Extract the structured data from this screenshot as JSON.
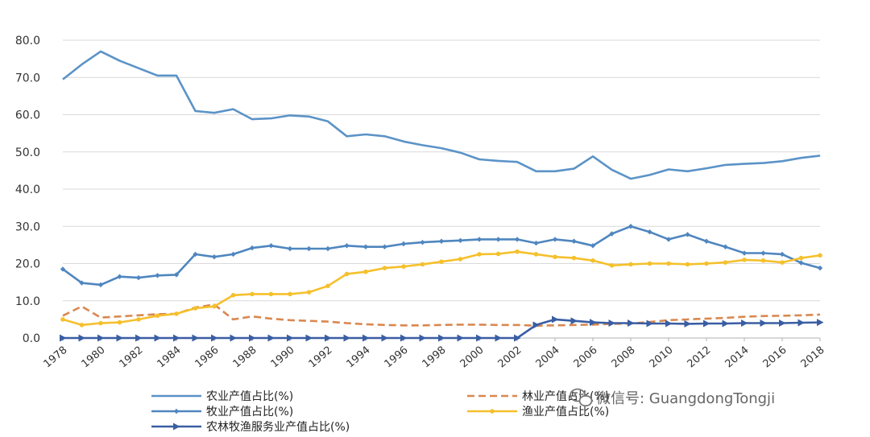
{
  "chart_data": {
    "type": "line",
    "title": "",
    "xlabel": "",
    "ylabel": "",
    "ylim": [
      0,
      80
    ],
    "y_ticks": [
      "0.0",
      "10.0",
      "20.0",
      "30.0",
      "40.0",
      "50.0",
      "60.0",
      "70.0",
      "80.0"
    ],
    "x": [
      1978,
      1979,
      1980,
      1981,
      1982,
      1983,
      1984,
      1985,
      1986,
      1987,
      1988,
      1989,
      1990,
      1991,
      1992,
      1993,
      1994,
      1995,
      1996,
      1997,
      1998,
      1999,
      2000,
      2001,
      2002,
      2003,
      2004,
      2005,
      2006,
      2007,
      2008,
      2009,
      2010,
      2011,
      2012,
      2013,
      2014,
      2015,
      2016,
      2017,
      2018
    ],
    "x_tick_labels": [
      "1978",
      "1980",
      "1982",
      "1984",
      "1986",
      "1988",
      "1990",
      "1992",
      "1994",
      "1996",
      "1998",
      "2000",
      "2002",
      "2004",
      "2006",
      "2008",
      "2010",
      "2012",
      "2014",
      "2016",
      "2018"
    ],
    "grid": "horizontal",
    "legend_position": "bottom",
    "series": [
      {
        "name": "农业产值占比(%)",
        "color": "#5b93c7",
        "style": "solid",
        "marker": "none",
        "values": [
          69.5,
          73.5,
          77.0,
          74.5,
          72.5,
          70.5,
          70.5,
          61.0,
          60.5,
          61.5,
          58.8,
          59.0,
          59.8,
          59.5,
          58.2,
          54.2,
          54.7,
          54.2,
          52.8,
          51.8,
          51.0,
          49.8,
          48.0,
          47.6,
          47.3,
          44.8,
          44.8,
          45.5,
          48.8,
          45.2,
          42.8,
          43.8,
          45.3,
          44.8,
          45.6,
          46.5,
          46.8,
          47.0,
          47.5,
          48.4,
          49.0
        ]
      },
      {
        "name": "林业产值占比(%)",
        "color": "#d98850",
        "style": "dashed",
        "marker": "none",
        "values": [
          6.0,
          8.5,
          5.5,
          5.8,
          6.1,
          6.4,
          6.5,
          8.2,
          9.0,
          5.0,
          5.8,
          5.2,
          4.8,
          4.6,
          4.4,
          4.0,
          3.7,
          3.5,
          3.4,
          3.4,
          3.5,
          3.6,
          3.6,
          3.5,
          3.5,
          3.3,
          3.4,
          3.5,
          3.6,
          3.8,
          3.9,
          4.3,
          4.8,
          5.0,
          5.2,
          5.4,
          5.7,
          5.9,
          6.0,
          6.1,
          6.3
        ]
      },
      {
        "name": "牧业产值占比(%)",
        "color": "#4f86bf",
        "style": "solid",
        "marker": "diamond",
        "values": [
          18.5,
          14.8,
          14.3,
          16.5,
          16.2,
          16.8,
          17.0,
          22.5,
          21.8,
          22.5,
          24.2,
          24.8,
          24.0,
          24.0,
          24.0,
          24.8,
          24.5,
          24.5,
          25.3,
          25.7,
          26.0,
          26.2,
          26.5,
          26.5,
          26.5,
          25.5,
          26.5,
          26.0,
          24.8,
          28.0,
          30.0,
          28.5,
          26.5,
          27.8,
          26.0,
          24.5,
          22.8,
          22.8,
          22.5,
          20.2,
          18.8
        ]
      },
      {
        "name": "渔业产值占比(%)",
        "color": "#f5c02c",
        "style": "solid",
        "marker": "circle",
        "values": [
          5.0,
          3.5,
          4.0,
          4.2,
          5.0,
          6.0,
          6.5,
          8.0,
          8.5,
          11.5,
          11.8,
          11.8,
          11.8,
          12.3,
          14.0,
          17.2,
          17.8,
          18.8,
          19.2,
          19.8,
          20.5,
          21.2,
          22.5,
          22.6,
          23.2,
          22.5,
          21.8,
          21.5,
          20.8,
          19.5,
          19.8,
          20.0,
          20.0,
          19.8,
          20.0,
          20.3,
          21.0,
          20.8,
          20.3,
          21.5,
          22.2
        ]
      },
      {
        "name": "农林牧渔服务业产值占比(%)",
        "color": "#3a5ea3",
        "style": "solid",
        "marker": "arrow",
        "values": [
          0,
          0,
          0,
          0,
          0,
          0,
          0,
          0,
          0,
          0,
          0,
          0,
          0,
          0,
          0,
          0,
          0,
          0,
          0,
          0,
          0,
          0,
          0,
          0,
          0,
          3.5,
          5.0,
          4.6,
          4.2,
          4.0,
          4.0,
          3.9,
          3.9,
          3.8,
          3.9,
          3.9,
          4.0,
          4.0,
          4.0,
          4.1,
          4.2
        ]
      }
    ]
  },
  "watermark": {
    "icon": "wechat-icon",
    "text": "微信号: GuangdongTongji"
  }
}
